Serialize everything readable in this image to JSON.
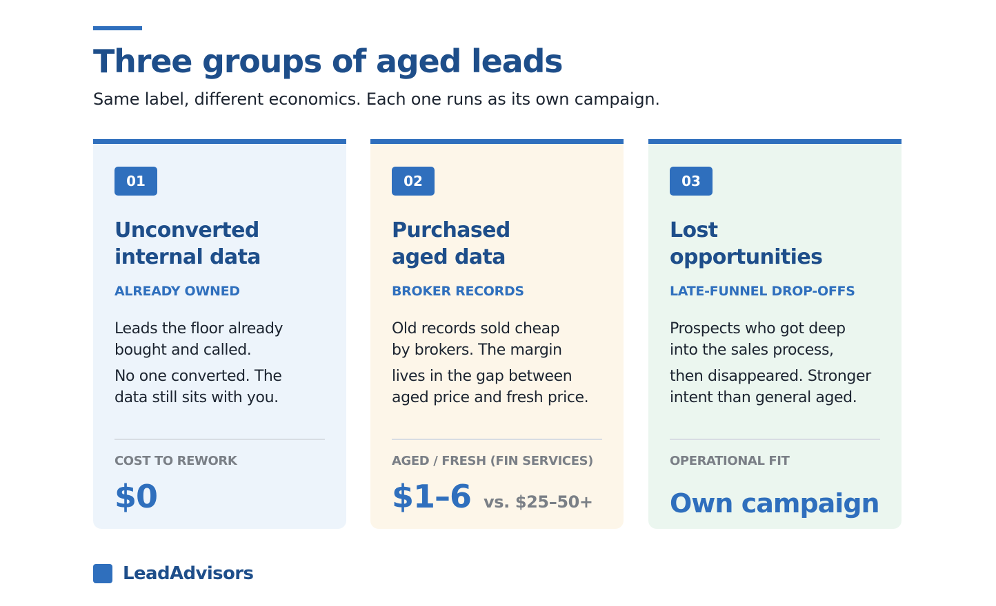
{
  "header": {
    "title": "Three groups of aged leads",
    "subtitle": "Same label, different economics. Each one runs as its own campaign."
  },
  "cards": [
    {
      "number": "01",
      "title_lines": [
        "Unconverted",
        "internal data"
      ],
      "tag": "ALREADY OWNED",
      "body_lines": [
        "Leads the floor already",
        "bought and called.",
        "No one converted. The",
        "data still sits with you."
      ],
      "metric_label": "COST TO REWORK",
      "metric_value": "$0",
      "metric_suffix": ""
    },
    {
      "number": "02",
      "title_lines": [
        "Purchased",
        "aged data"
      ],
      "tag": "BROKER RECORDS",
      "body_lines": [
        "Old records sold cheap",
        "by brokers. The margin",
        "lives in the gap between",
        "aged price and fresh price."
      ],
      "metric_label": "AGED / FRESH (FIN SERVICES)",
      "metric_value": "$1–6",
      "metric_suffix": "vs. $25–50+"
    },
    {
      "number": "03",
      "title_lines": [
        "Lost",
        "opportunities"
      ],
      "tag": "LATE-FUNNEL DROP-OFFS",
      "body_lines": [
        "Prospects who got deep",
        "into the sales process,",
        "then disappeared. Stronger",
        "intent than general aged."
      ],
      "metric_label": "OPERATIONAL FIT",
      "metric_value": "Own campaign",
      "metric_suffix": ""
    }
  ],
  "footer": {
    "brand": "LeadAdvisors"
  },
  "colors": {
    "accent": "#2f6fbd",
    "heading": "#1e4e8a",
    "card_1_bg": "#edf4fb",
    "card_2_bg": "#fdf6e9",
    "card_3_bg": "#ebf6ef"
  }
}
